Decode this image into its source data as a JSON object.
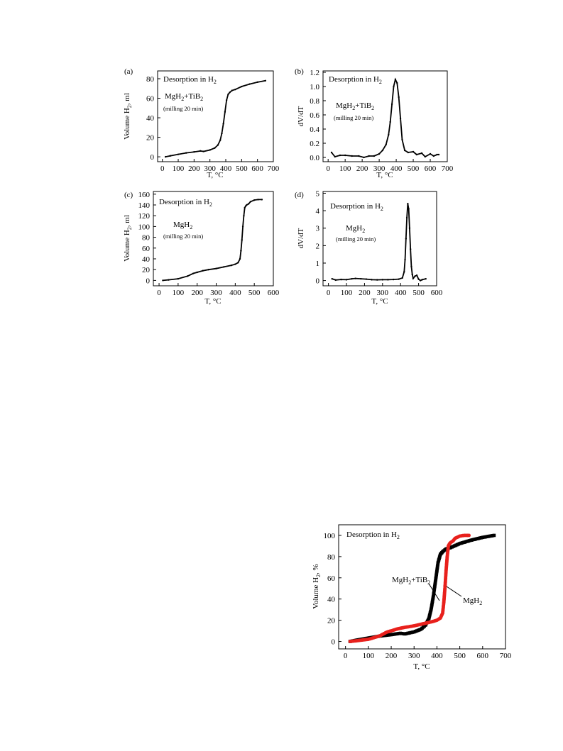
{
  "chart_data": [
    {
      "type": "line",
      "panel_label": "(a)",
      "annotations": {
        "condition": {
          "text": "Desorption in H",
          "sub": "2"
        },
        "sample_parts": [
          {
            "t": "MgH",
            "s": false
          },
          {
            "t": "2",
            "s": true
          },
          {
            "t": "+TiB",
            "s": false
          },
          {
            "t": "2",
            "s": true
          }
        ],
        "milling": "(milling 20 min)"
      },
      "ylabel_parts": [
        {
          "t": "Volume H",
          "s": false
        },
        {
          "t": "2",
          "s": true
        },
        {
          "t": ", ml",
          "s": false
        }
      ],
      "xlabel": "T, °C",
      "xticks": [
        0,
        100,
        200,
        300,
        400,
        500,
        600,
        700
      ],
      "yticks": [
        0,
        20,
        40,
        60,
        80
      ],
      "xlim": [
        -30,
        700
      ],
      "ylim": [
        -5,
        88
      ],
      "marker": "line+dots",
      "series": [
        {
          "x": [
            20,
            50,
            100,
            150,
            200,
            240,
            260,
            300,
            330,
            350,
            365,
            375,
            385,
            395,
            405,
            415,
            425,
            440,
            460,
            500,
            550,
            600,
            650
          ],
          "y": [
            0,
            1,
            2.5,
            4,
            5,
            6,
            5.5,
            7,
            9,
            12,
            17,
            24,
            34,
            46,
            58,
            64,
            66,
            68,
            69,
            72,
            74.5,
            76.5,
            78
          ],
          "color": "#000000"
        }
      ]
    },
    {
      "type": "line",
      "panel_label": "(b)",
      "annotations": {
        "condition": {
          "text": "Desorption in H",
          "sub": "2"
        },
        "sample_parts": [
          {
            "t": "MgH",
            "s": false
          },
          {
            "t": "2",
            "s": true
          },
          {
            "t": "+TiB",
            "s": false
          },
          {
            "t": "2",
            "s": true
          }
        ],
        "milling": "(milling 20 min)"
      },
      "ylabel_parts": [
        {
          "t": "dV/dT",
          "s": false
        }
      ],
      "xlabel": "T, °C",
      "xticks": [
        0,
        100,
        200,
        300,
        400,
        500,
        600,
        700
      ],
      "yticks": [
        0.0,
        0.2,
        0.4,
        0.6,
        0.8,
        1.0,
        1.2
      ],
      "ytick_format": "fixed1",
      "xlim": [
        -30,
        700
      ],
      "ylim": [
        -0.06,
        1.22
      ],
      "marker": "line+dots",
      "series": [
        {
          "x": [
            20,
            40,
            70,
            100,
            140,
            180,
            210,
            240,
            270,
            300,
            320,
            340,
            355,
            365,
            375,
            385,
            395,
            405,
            415,
            425,
            435,
            450,
            470,
            500,
            520,
            550,
            570,
            600,
            620,
            640,
            650
          ],
          "y": [
            0.07,
            0.01,
            0.03,
            0.03,
            0.02,
            0.02,
            0.0,
            0.02,
            0.02,
            0.05,
            0.1,
            0.18,
            0.32,
            0.5,
            0.75,
            1.0,
            1.1,
            1.05,
            0.85,
            0.55,
            0.25,
            0.1,
            0.07,
            0.08,
            0.04,
            0.06,
            0.01,
            0.05,
            0.02,
            0.04,
            0.04
          ],
          "color": "#000000"
        }
      ]
    },
    {
      "type": "line",
      "panel_label": "(c)",
      "annotations": {
        "condition": {
          "text": "Desorption in H",
          "sub": "2"
        },
        "sample_parts": [
          {
            "t": "MgH",
            "s": false
          },
          {
            "t": "2",
            "s": true
          }
        ],
        "milling": "(milling 20 min)"
      },
      "ylabel_parts": [
        {
          "t": "Volume H",
          "s": false
        },
        {
          "t": "2",
          "s": true
        },
        {
          "t": ", ml",
          "s": false
        }
      ],
      "xlabel": "T, °C",
      "xticks": [
        0,
        100,
        200,
        300,
        400,
        500,
        600
      ],
      "yticks": [
        0,
        20,
        40,
        60,
        80,
        100,
        120,
        140,
        160
      ],
      "xlim": [
        -30,
        600
      ],
      "ylim": [
        -10,
        165
      ],
      "marker": "line+dots",
      "series": [
        {
          "x": [
            20,
            50,
            100,
            150,
            180,
            200,
            230,
            260,
            300,
            340,
            380,
            400,
            415,
            425,
            430,
            435,
            440,
            445,
            450,
            455,
            460,
            470,
            480,
            500,
            520,
            540
          ],
          "y": [
            0,
            1,
            3,
            8,
            13,
            15,
            18,
            20,
            22,
            25,
            28,
            30,
            33,
            40,
            55,
            75,
            100,
            120,
            135,
            138,
            140,
            142,
            146,
            149,
            150,
            150
          ],
          "color": "#000000"
        }
      ]
    },
    {
      "type": "line",
      "panel_label": "(d)",
      "annotations": {
        "condition": {
          "text": "Desorption in H",
          "sub": "2"
        },
        "sample_parts": [
          {
            "t": "MgH",
            "s": false
          },
          {
            "t": "2",
            "s": true
          }
        ],
        "milling": "(milling 20 min)"
      },
      "ylabel_parts": [
        {
          "t": "dV/dT",
          "s": false
        }
      ],
      "xlabel": "T, °C",
      "xticks": [
        0,
        100,
        200,
        300,
        400,
        500,
        600
      ],
      "yticks": [
        0,
        1,
        2,
        3,
        4,
        5
      ],
      "xlim": [
        -30,
        600
      ],
      "ylim": [
        -0.3,
        5.1
      ],
      "marker": "line+dots",
      "series": [
        {
          "x": [
            20,
            40,
            70,
            100,
            130,
            150,
            180,
            210,
            240,
            270,
            300,
            330,
            360,
            390,
            410,
            420,
            425,
            430,
            435,
            440,
            445,
            450,
            455,
            460,
            465,
            470,
            480,
            490,
            500,
            510,
            520,
            540
          ],
          "y": [
            0.1,
            0.03,
            0.06,
            0.05,
            0.1,
            0.12,
            0.1,
            0.08,
            0.05,
            0.04,
            0.05,
            0.05,
            0.06,
            0.08,
            0.15,
            0.5,
            1.2,
            2.4,
            3.6,
            4.4,
            4.1,
            3.0,
            1.8,
            0.8,
            0.35,
            0.12,
            0.25,
            0.3,
            0.08,
            0.0,
            0.05,
            0.1
          ],
          "color": "#000000"
        }
      ]
    },
    {
      "type": "scatter",
      "annotations": {
        "condition": {
          "text": "Desorption in H",
          "sub": "2"
        }
      },
      "series_labels": [
        {
          "parts": [
            {
              "t": "MgH",
              "s": false
            },
            {
              "t": "2",
              "s": true
            },
            {
              "t": "+TiB",
              "s": false
            },
            {
              "t": "2",
              "s": true
            }
          ]
        },
        {
          "parts": [
            {
              "t": "MgH",
              "s": false
            },
            {
              "t": "2",
              "s": true
            }
          ]
        }
      ],
      "ylabel_parts": [
        {
          "t": "Volume H",
          "s": false
        },
        {
          "t": "2",
          "s": true
        },
        {
          "t": ", %",
          "s": false
        }
      ],
      "xlabel": "T, °C",
      "xticks": [
        0,
        100,
        200,
        300,
        400,
        500,
        600,
        700
      ],
      "yticks": [
        0,
        20,
        40,
        60,
        80,
        100
      ],
      "xlim": [
        -30,
        700
      ],
      "ylim": [
        -7,
        110
      ],
      "marker": "dense",
      "series": [
        {
          "color": "#000000",
          "marker_shape": "square",
          "x": [
            20,
            50,
            100,
            150,
            200,
            240,
            260,
            300,
            330,
            350,
            365,
            375,
            385,
            395,
            405,
            415,
            425,
            440,
            460,
            500,
            550,
            600,
            650
          ],
          "y": [
            0,
            1.3,
            3.2,
            5.1,
            6.4,
            7.7,
            7.1,
            9.0,
            11.5,
            15.4,
            21.8,
            30.8,
            43.6,
            59.0,
            74.4,
            82.1,
            84.6,
            87.2,
            88.5,
            92.3,
            95.5,
            98.1,
            100
          ]
        },
        {
          "color": "#e8201c",
          "marker_shape": "circle",
          "x": [
            20,
            50,
            100,
            150,
            180,
            200,
            230,
            260,
            300,
            340,
            380,
            400,
            415,
            425,
            430,
            435,
            440,
            445,
            450,
            455,
            460,
            470,
            480,
            500,
            520,
            540
          ],
          "y": [
            0,
            0.7,
            2.0,
            5.3,
            8.7,
            10.0,
            12.0,
            13.3,
            14.7,
            16.7,
            18.7,
            20.0,
            22.0,
            26.7,
            36.7,
            50.0,
            66.7,
            80.0,
            90.0,
            92.0,
            93.3,
            94.7,
            97.3,
            99.3,
            100,
            100
          ]
        }
      ]
    }
  ]
}
